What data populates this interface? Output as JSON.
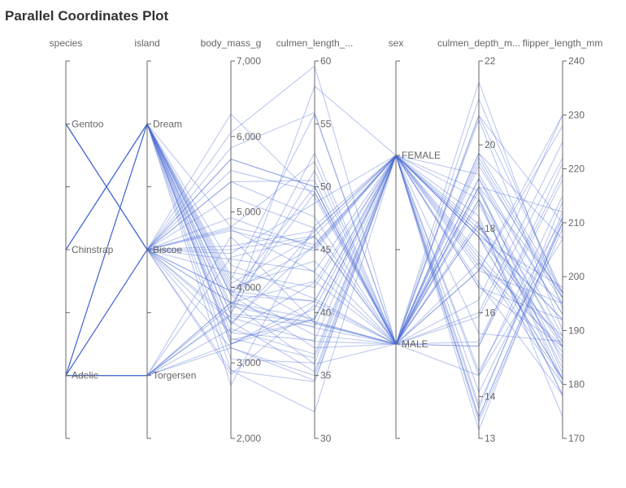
{
  "title": "Parallel Coordinates Plot",
  "chart_data": {
    "type": "parallel-coordinates",
    "title": "Parallel Coordinates Plot",
    "line_color": "#4a6cd4",
    "axes": [
      {
        "name": "species",
        "label": "species",
        "kind": "categorical",
        "categories": [
          "Gentoo",
          "Chinstrap",
          "Adelie"
        ]
      },
      {
        "name": "island",
        "label": "island",
        "kind": "categorical",
        "categories": [
          "Dream",
          "Biscoe",
          "Torgersen"
        ]
      },
      {
        "name": "body_mass_g",
        "label": "body_mass_g",
        "kind": "numeric",
        "range": [
          2000,
          7000
        ],
        "ticks": [
          2000,
          3000,
          4000,
          5000,
          6000,
          7000
        ],
        "tick_labels": [
          "2,000",
          "3,000",
          "4,000",
          "5,000",
          "6,000",
          "7,000"
        ]
      },
      {
        "name": "culmen_length_mm",
        "label": "culmen_length_...",
        "kind": "numeric",
        "range": [
          30,
          60
        ],
        "ticks": [
          30,
          35,
          40,
          45,
          50,
          55,
          60
        ],
        "tick_labels": [
          "30",
          "35",
          "40",
          "45",
          "50",
          "55",
          "60"
        ]
      },
      {
        "name": "sex",
        "label": "sex",
        "kind": "categorical",
        "categories": [
          "FEMALE",
          "MALE"
        ]
      },
      {
        "name": "culmen_depth_mm",
        "label": "culmen_depth_m...",
        "kind": "numeric",
        "range": [
          13,
          22
        ],
        "ticks": [
          13,
          14,
          16,
          18,
          20,
          22
        ],
        "tick_labels": [
          "13",
          "14",
          "16",
          "18",
          "20",
          "22"
        ]
      },
      {
        "name": "flipper_length_mm",
        "label": "flipper_length_mm",
        "kind": "numeric",
        "range": [
          170,
          240
        ],
        "ticks": [
          170,
          180,
          190,
          200,
          210,
          220,
          230,
          240
        ],
        "tick_labels": [
          "170",
          "180",
          "190",
          "200",
          "210",
          "220",
          "230",
          "240"
        ]
      }
    ],
    "rows": [
      [
        "Adelie",
        "Torgersen",
        3750,
        39.1,
        "MALE",
        18.7,
        181
      ],
      [
        "Adelie",
        "Torgersen",
        3800,
        39.5,
        "FEMALE",
        17.4,
        186
      ],
      [
        "Adelie",
        "Torgersen",
        3250,
        40.3,
        "FEMALE",
        18.0,
        195
      ],
      [
        "Adelie",
        "Torgersen",
        3450,
        36.7,
        "FEMALE",
        19.3,
        193
      ],
      [
        "Adelie",
        "Torgersen",
        3650,
        39.3,
        "MALE",
        20.6,
        190
      ],
      [
        "Adelie",
        "Torgersen",
        3625,
        38.9,
        "FEMALE",
        17.8,
        181
      ],
      [
        "Adelie",
        "Torgersen",
        4675,
        39.2,
        "MALE",
        19.6,
        195
      ],
      [
        "Adelie",
        "Torgersen",
        3200,
        34.6,
        "FEMALE",
        17.2,
        189
      ],
      [
        "Adelie",
        "Torgersen",
        3800,
        42.5,
        "MALE",
        20.7,
        197
      ],
      [
        "Adelie",
        "Torgersen",
        4400,
        46.0,
        "MALE",
        21.5,
        194
      ],
      [
        "Adelie",
        "Biscoe",
        3400,
        37.8,
        "FEMALE",
        18.3,
        174
      ],
      [
        "Adelie",
        "Biscoe",
        3600,
        37.7,
        "MALE",
        18.7,
        180
      ],
      [
        "Adelie",
        "Biscoe",
        3800,
        35.9,
        "MALE",
        19.2,
        189
      ],
      [
        "Adelie",
        "Biscoe",
        3950,
        38.2,
        "MALE",
        18.1,
        185
      ],
      [
        "Adelie",
        "Biscoe",
        3800,
        38.8,
        "MALE",
        17.2,
        180
      ],
      [
        "Adelie",
        "Biscoe",
        3550,
        35.3,
        "FEMALE",
        18.9,
        187
      ],
      [
        "Adelie",
        "Biscoe",
        2850,
        40.6,
        "MALE",
        18.6,
        183
      ],
      [
        "Adelie",
        "Biscoe",
        4775,
        43.2,
        "MALE",
        19.0,
        197
      ],
      [
        "Adelie",
        "Biscoe",
        3200,
        35.0,
        "FEMALE",
        17.9,
        192
      ],
      [
        "Adelie",
        "Biscoe",
        2900,
        34.5,
        "FEMALE",
        18.1,
        187
      ],
      [
        "Adelie",
        "Dream",
        3250,
        39.5,
        "FEMALE",
        16.7,
        178
      ],
      [
        "Adelie",
        "Dream",
        3900,
        37.2,
        "MALE",
        18.1,
        178
      ],
      [
        "Adelie",
        "Dream",
        3300,
        39.5,
        "FEMALE",
        17.8,
        188
      ],
      [
        "Adelie",
        "Dream",
        3900,
        40.9,
        "MALE",
        18.9,
        184
      ],
      [
        "Adelie",
        "Dream",
        3325,
        36.4,
        "FEMALE",
        17.0,
        195
      ],
      [
        "Adelie",
        "Dream",
        4150,
        39.2,
        "MALE",
        21.1,
        196
      ],
      [
        "Adelie",
        "Dream",
        2900,
        32.1,
        "FEMALE",
        15.5,
        188
      ],
      [
        "Adelie",
        "Dream",
        4300,
        41.1,
        "MALE",
        19.0,
        182
      ],
      [
        "Adelie",
        "Dream",
        3050,
        36.0,
        "FEMALE",
        17.1,
        187
      ],
      [
        "Adelie",
        "Dream",
        4000,
        44.1,
        "MALE",
        19.7,
        196
      ],
      [
        "Chinstrap",
        "Dream",
        3500,
        46.5,
        "FEMALE",
        17.9,
        192
      ],
      [
        "Chinstrap",
        "Dream",
        3900,
        50.0,
        "MALE",
        19.5,
        196
      ],
      [
        "Chinstrap",
        "Dream",
        3650,
        51.3,
        "MALE",
        19.2,
        193
      ],
      [
        "Chinstrap",
        "Dream",
        3525,
        45.4,
        "FEMALE",
        18.7,
        188
      ],
      [
        "Chinstrap",
        "Dream",
        3725,
        52.7,
        "MALE",
        19.8,
        197
      ],
      [
        "Chinstrap",
        "Dream",
        3950,
        45.2,
        "FEMALE",
        17.8,
        198
      ],
      [
        "Chinstrap",
        "Dream",
        4050,
        46.1,
        "MALE",
        18.2,
        178
      ],
      [
        "Chinstrap",
        "Dream",
        2700,
        46.9,
        "FEMALE",
        16.6,
        192
      ],
      [
        "Chinstrap",
        "Dream",
        4800,
        52.0,
        "MALE",
        20.7,
        210
      ],
      [
        "Chinstrap",
        "Dream",
        3650,
        58.0,
        "FEMALE",
        17.8,
        181
      ],
      [
        "Chinstrap",
        "Dream",
        4100,
        55.8,
        "MALE",
        19.8,
        207
      ],
      [
        "Chinstrap",
        "Dream",
        3400,
        42.4,
        "FEMALE",
        17.3,
        181
      ],
      [
        "Chinstrap",
        "Dream",
        3775,
        49.5,
        "MALE",
        19.0,
        212
      ],
      [
        "Chinstrap",
        "Dream",
        3250,
        40.9,
        "FEMALE",
        16.6,
        187
      ],
      [
        "Gentoo",
        "Biscoe",
        4500,
        46.1,
        "FEMALE",
        13.2,
        211
      ],
      [
        "Gentoo",
        "Biscoe",
        5700,
        50.0,
        "MALE",
        16.3,
        230
      ],
      [
        "Gentoo",
        "Biscoe",
        4450,
        48.7,
        "FEMALE",
        14.1,
        210
      ],
      [
        "Gentoo",
        "Biscoe",
        5700,
        50.0,
        "MALE",
        15.2,
        218
      ],
      [
        "Gentoo",
        "Biscoe",
        5400,
        47.6,
        "MALE",
        14.5,
        215
      ],
      [
        "Gentoo",
        "Biscoe",
        4550,
        46.5,
        "FEMALE",
        13.5,
        210
      ],
      [
        "Gentoo",
        "Biscoe",
        4800,
        45.4,
        "FEMALE",
        14.6,
        211
      ],
      [
        "Gentoo",
        "Biscoe",
        5200,
        46.7,
        "MALE",
        15.3,
        219
      ],
      [
        "Gentoo",
        "Biscoe",
        6300,
        49.2,
        "MALE",
        15.2,
        221
      ],
      [
        "Gentoo",
        "Biscoe",
        4200,
        42.0,
        "FEMALE",
        13.5,
        210
      ],
      [
        "Gentoo",
        "Biscoe",
        6050,
        59.6,
        "MALE",
        17.0,
        230
      ],
      [
        "Gentoo",
        "Biscoe",
        3950,
        40.9,
        "FEMALE",
        13.7,
        214
      ],
      [
        "Gentoo",
        "Biscoe",
        5550,
        49.6,
        "MALE",
        16.0,
        225
      ],
      [
        "Gentoo",
        "Biscoe",
        4925,
        45.1,
        "FEMALE",
        14.5,
        207
      ],
      [
        "Gentoo",
        "Biscoe",
        5850,
        55.9,
        "MALE",
        17.0,
        228
      ],
      [
        "Gentoo",
        "Biscoe",
        4375,
        43.3,
        "FEMALE",
        13.4,
        209
      ],
      [
        "Gentoo",
        "Biscoe",
        5400,
        50.5,
        "MALE",
        15.9,
        222
      ],
      [
        "Gentoo",
        "Biscoe",
        4750,
        44.9,
        "FEMALE",
        13.8,
        212
      ]
    ]
  }
}
